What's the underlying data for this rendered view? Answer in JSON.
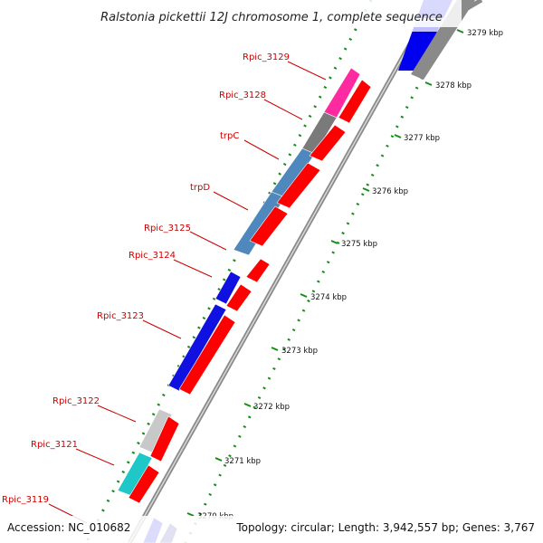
{
  "title": "Ralstonia pickettii 12J chromosome 1, complete sequence",
  "footer": {
    "accession": "Accession: NC_010682",
    "summary": "Topology: circular; Length: 3,942,557 bp; Genes: 3,767"
  },
  "gene_labels": [
    "Rpic_3129",
    "Rpic_3128",
    "trpC",
    "trpD",
    "Rpic_3125",
    "Rpic_3124",
    "Rpic_3123",
    "Rpic_3122",
    "Rpic_3121",
    "Rpic_3119"
  ],
  "scale_ticks": [
    "3279 kbp",
    "3278 kbp",
    "3277 kbp",
    "3276 kbp",
    "3275 kbp",
    "3274 kbp",
    "3273 kbp",
    "3272 kbp",
    "3271 kbp",
    "3270 kbp"
  ],
  "colors": {
    "backbone": "#8a8a8a",
    "forward_cds": "#ff0000",
    "reverse_blue": "#1010e0",
    "reverse_gray": "#7a7a7a",
    "reverse_pink": "#ff2aa0",
    "reverse_steel": "#4f88bd",
    "reverse_light": "#c8c8c8",
    "reverse_cyan": "#1ec8c8",
    "reverse_navy": "#3a3aa0",
    "label_red": "#cc0000",
    "dots_green": "#1a8a1a"
  }
}
